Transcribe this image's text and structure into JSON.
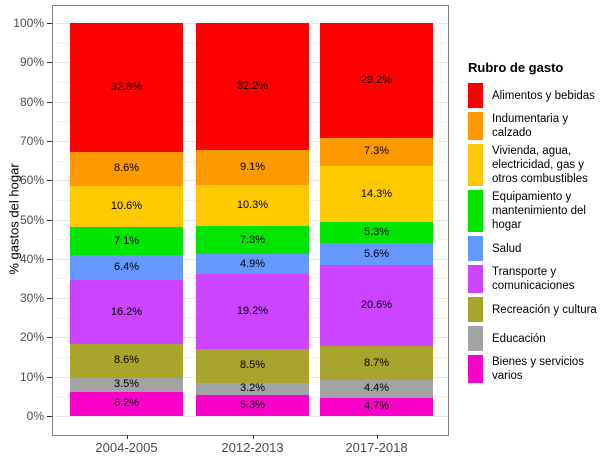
{
  "chart_data": {
    "type": "bar",
    "stacked": true,
    "title": "",
    "xlabel": "",
    "ylabel": "% gastos del hogar",
    "ylim": [
      0,
      100
    ],
    "y_tick_labels": [
      "0%",
      "10%",
      "20%",
      "30%",
      "40%",
      "50%",
      "60%",
      "70%",
      "80%",
      "90%",
      "100%"
    ],
    "categories": [
      "2004-2005",
      "2012-2013",
      "2017-2018"
    ],
    "legend_title": "Rubro de gasto",
    "legend_position": "right",
    "grid": "faint horizontal major (10%) and minor (5%) gridlines",
    "bar_label_format": "one decimal + %",
    "series": [
      {
        "name": "Alimentos y bebidas",
        "display_label": "Alimentos y bebidas",
        "color": "#FF0000",
        "values": [
          32.8,
          32.2,
          29.2
        ]
      },
      {
        "name": "Indumentaria y calzado",
        "display_label": "Indumentaria y\ncalzado",
        "color": "#FF9900",
        "values": [
          8.6,
          9.1,
          7.3
        ]
      },
      {
        "name": "Vivienda, agua, electricidad, gas y otros combustibles",
        "display_label": "Vivienda, agua,\nelectricidad, gas y\notros combustibles",
        "color": "#FFC900",
        "values": [
          10.6,
          10.3,
          14.3
        ]
      },
      {
        "name": "Equipamiento y mantenimiento del hogar",
        "display_label": "Equipamiento y\nmantenimiento del\nhogar",
        "color": "#00E500",
        "values": [
          7.1,
          7.3,
          5.3
        ]
      },
      {
        "name": "Salud",
        "display_label": "Salud",
        "color": "#6699FF",
        "values": [
          6.4,
          4.9,
          5.6
        ]
      },
      {
        "name": "Transporte y comunicaciones",
        "display_label": "Transporte y\ncomunicaciones",
        "color": "#CC44FF",
        "values": [
          16.2,
          19.2,
          20.6
        ]
      },
      {
        "name": "Recreación y cultura",
        "display_label": "Recreación y cultura",
        "color": "#A9A42B",
        "values": [
          8.6,
          8.5,
          8.7
        ]
      },
      {
        "name": "Educación",
        "display_label": "Educación",
        "color": "#A3A3A3",
        "values": [
          3.5,
          3.2,
          4.4
        ]
      },
      {
        "name": "Bienes y servicios varios",
        "display_label": "Bienes y servicios\nvarios",
        "color": "#FA00CA",
        "values": [
          6.2,
          5.3,
          4.7
        ]
      }
    ]
  },
  "colors": {
    "background": "#FFFFFF",
    "panel_border": "#7F7F7F",
    "axis_tick": "#333333",
    "axis_text": "#4D4D4D",
    "grid_major": "#E7E7E7",
    "grid_minor": "#F2F2F2",
    "bar_label_text": "#000000"
  }
}
